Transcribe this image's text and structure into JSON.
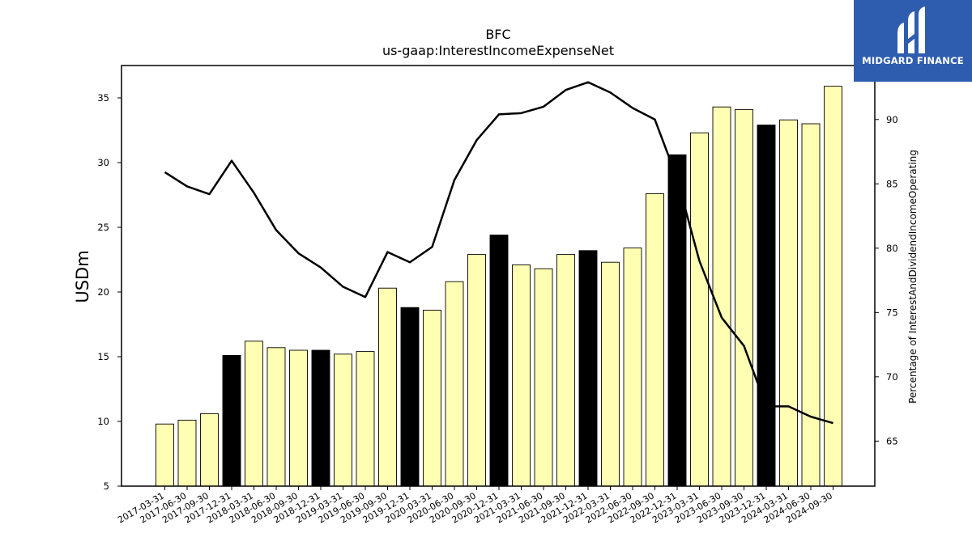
{
  "chart_data": {
    "type": "bar",
    "title": "BFC",
    "subtitle": "us-gaap:InterestIncomeExpenseNet",
    "ylabel": "USDm",
    "y2label": "Percentage of InterestAndDividendIncomeOperating",
    "ylim": [
      5,
      37.5
    ],
    "y2lim": [
      61.5,
      94.2
    ],
    "yticks": [
      5,
      10,
      15,
      20,
      25,
      30,
      35
    ],
    "y2ticks": [
      65,
      70,
      75,
      80,
      85,
      90
    ],
    "categories": [
      "2017-03-31",
      "2017-06-30",
      "2017-09-30",
      "2017-12-31",
      "2018-03-31",
      "2018-06-30",
      "2018-09-30",
      "2018-12-31",
      "2019-03-31",
      "2019-06-30",
      "2019-09-30",
      "2019-12-31",
      "2020-03-31",
      "2020-06-30",
      "2020-09-30",
      "2020-12-31",
      "2021-03-31",
      "2021-06-30",
      "2021-09-30",
      "2021-12-31",
      "2022-03-31",
      "2022-06-30",
      "2022-09-30",
      "2022-12-31",
      "2023-03-31",
      "2023-06-30",
      "2023-09-30",
      "2023-12-31",
      "2024-03-31",
      "2024-06-30",
      "2024-09-30"
    ],
    "series": [
      {
        "kind": "bar",
        "values": [
          9.8,
          10.1,
          10.6,
          15.1,
          16.2,
          15.7,
          15.5,
          15.5,
          15.2,
          15.4,
          20.3,
          18.8,
          18.6,
          20.8,
          22.9,
          24.4,
          22.1,
          21.8,
          22.9,
          23.2,
          22.3,
          23.4,
          27.6,
          30.6,
          32.3,
          34.3,
          34.1,
          32.9,
          33.3,
          33.0,
          35.9
        ],
        "colors": [
          "#ffffb3",
          "#ffffb3",
          "#ffffb3",
          "#000000",
          "#ffffb3",
          "#ffffb3",
          "#ffffb3",
          "#000000",
          "#ffffb3",
          "#ffffb3",
          "#ffffb3",
          "#000000",
          "#ffffb3",
          "#ffffb3",
          "#ffffb3",
          "#000000",
          "#ffffb3",
          "#ffffb3",
          "#ffffb3",
          "#000000",
          "#ffffb3",
          "#ffffb3",
          "#ffffb3",
          "#000000",
          "#ffffb3",
          "#ffffb3",
          "#ffffb3",
          "#000000",
          "#ffffb3",
          "#ffffb3",
          "#ffffb3"
        ]
      },
      {
        "kind": "line",
        "axis": "right",
        "color": "#000000",
        "values": [
          85.9,
          84.8,
          84.2,
          86.8,
          84.3,
          81.4,
          79.6,
          78.5,
          77.0,
          76.2,
          79.7,
          78.9,
          80.1,
          85.3,
          88.4,
          90.4,
          90.5,
          91.0,
          92.3,
          92.9,
          92.1,
          90.9,
          90.0,
          85.4,
          79.0,
          74.6,
          72.4,
          67.7,
          67.7,
          66.9,
          66.4
        ]
      }
    ],
    "grid": false
  },
  "logo": {
    "text": "MIDGARD FINANCE",
    "background": "#2e5db0",
    "icon": "midgard-logo-mark"
  }
}
